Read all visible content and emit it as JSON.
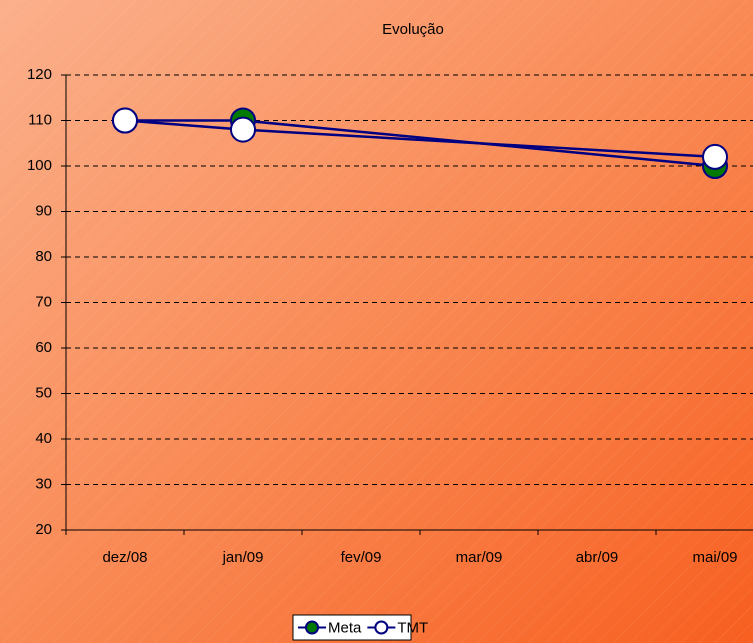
{
  "chart_data": {
    "type": "line",
    "title": "Evolução",
    "categories": [
      "dez/08",
      "jan/09",
      "fev/09",
      "mar/09",
      "abr/09",
      "mai/09"
    ],
    "series": [
      {
        "name": "Meta",
        "color": "#000080",
        "marker_fill": "#007a00",
        "values": [
          110,
          110,
          null,
          null,
          null,
          100
        ]
      },
      {
        "name": "TMT",
        "color": "#000080",
        "marker_fill": "#ffffff",
        "values": [
          110,
          108,
          null,
          null,
          null,
          102
        ]
      }
    ],
    "connect_gaps": true,
    "ylim": [
      20,
      120
    ],
    "yticks": [
      20,
      30,
      40,
      50,
      60,
      70,
      80,
      90,
      100,
      110,
      120
    ],
    "grid": true,
    "legend": "bottom"
  }
}
